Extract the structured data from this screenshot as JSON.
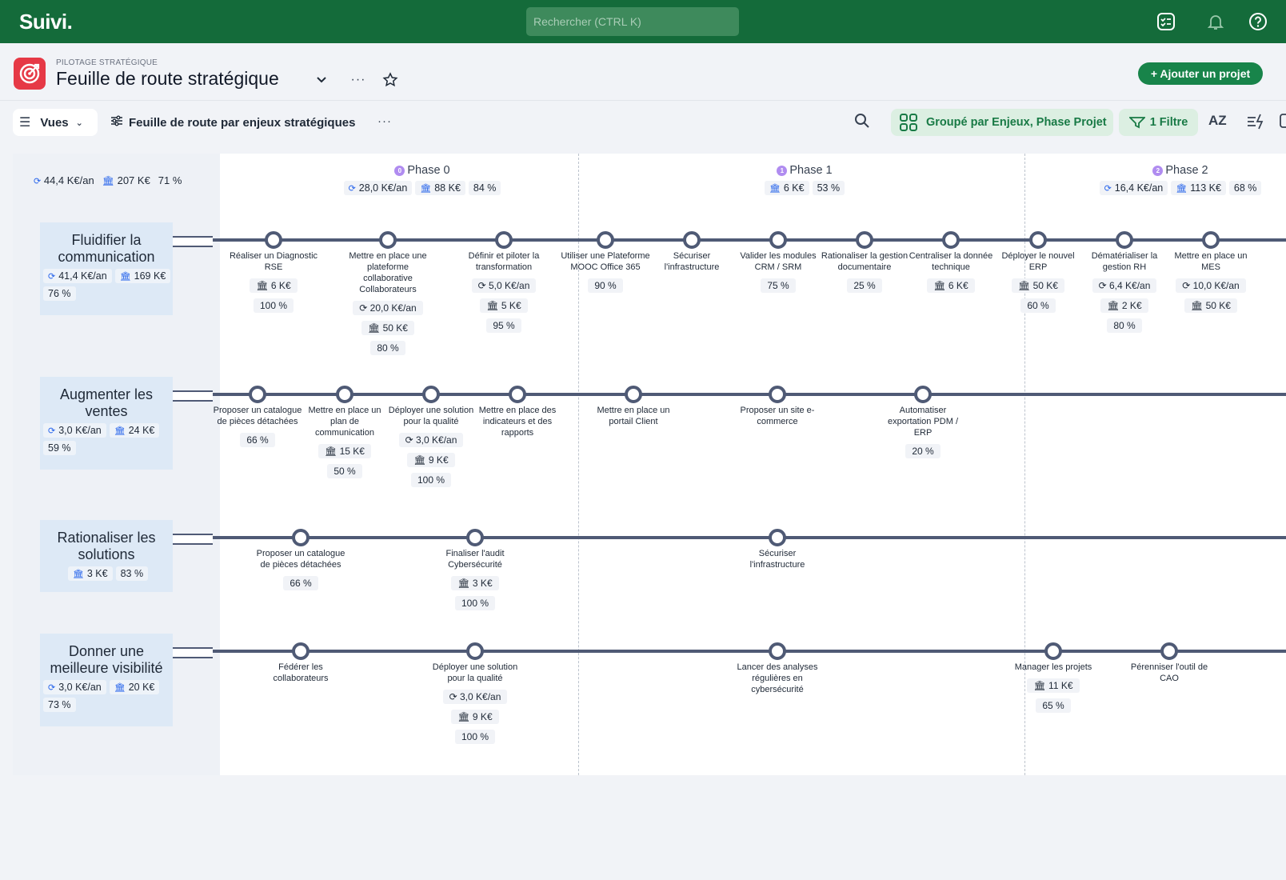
{
  "topbar": {
    "logo": "Suivi.",
    "search_placeholder": "Rechercher (CTRL K)"
  },
  "header": {
    "breadcrumb": "PILOTAGE STRATÉGIQUE",
    "title": "Feuille de route stratégique",
    "more": "···",
    "add_button": "+ Ajouter un projet"
  },
  "toolbar": {
    "views_label": "Vues",
    "view_name": "Feuille de route par enjeux stratégiques",
    "view_more": "···",
    "group_label": "Groupé par Enjeux, Phase Projet",
    "filter_label": "1 Filtre",
    "sort_label": "AZ"
  },
  "totals": {
    "recurrent": "44,4 K€/an",
    "budget": "207 K€",
    "progress": "71 %"
  },
  "phases": [
    {
      "num": "0",
      "title": "Phase 0",
      "recurrent": "28,0 K€/an",
      "budget": "88 K€",
      "progress": "84 %"
    },
    {
      "num": "1",
      "title": "Phase 1",
      "recurrent": "",
      "budget": "6 K€",
      "progress": "53 %"
    },
    {
      "num": "2",
      "title": "Phase 2",
      "recurrent": "16,4 K€/an",
      "budget": "113 K€",
      "progress": "68 %"
    }
  ],
  "rows": [
    {
      "name": "Fluidifier la communication",
      "recurrent": "41,4 K€/an",
      "budget": "169 K€",
      "progress": "76 %",
      "milestones": [
        {
          "label": "Réaliser un Diagnostic RSE",
          "chips": [
            "🏛 6 K€",
            "100 %"
          ]
        },
        {
          "label": "Mettre en place une plateforme collaborative Collaborateurs",
          "chips": [
            "⟳ 20,0 K€/an",
            "🏛 50 K€",
            "80 %"
          ]
        },
        {
          "label": "Définir et piloter la transformation",
          "chips": [
            "⟳ 5,0 K€/an",
            "🏛 5 K€",
            "95 %"
          ]
        },
        {
          "label": "Utiliser une Plateforme MOOC Office 365",
          "chips": [
            "90 %"
          ]
        },
        {
          "label": "Sécuriser l'infrastructure",
          "chips": []
        },
        {
          "label": "Valider les modules CRM / SRM",
          "chips": [
            "75 %"
          ]
        },
        {
          "label": "Rationaliser la gestion documentaire",
          "chips": [
            "25 %"
          ]
        },
        {
          "label": "Centraliser la donnée technique",
          "chips": [
            "🏛 6 K€"
          ]
        },
        {
          "label": "Déployer le nouvel ERP",
          "chips": [
            "🏛 50 K€",
            "60 %"
          ]
        },
        {
          "label": "Dématérialiser la gestion RH",
          "chips": [
            "⟳ 6,4 K€/an",
            "🏛 2 K€",
            "80 %"
          ]
        },
        {
          "label": "Mettre en place un MES",
          "chips": [
            "⟳ 10,0 K€/an",
            "🏛 50 K€"
          ]
        }
      ]
    },
    {
      "name": "Augmenter les ventes",
      "recurrent": "3,0 K€/an",
      "budget": "24 K€",
      "progress": "59 %",
      "milestones": [
        {
          "label": "Proposer un catalogue de pièces détachées",
          "chips": [
            "66 %"
          ]
        },
        {
          "label": "Mettre en place un plan de communication",
          "chips": [
            "🏛 15 K€",
            "50 %"
          ]
        },
        {
          "label": "Déployer une solution pour la qualité",
          "chips": [
            "⟳ 3,0 K€/an",
            "🏛 9 K€",
            "100 %"
          ]
        },
        {
          "label": "Mettre en place des indicateurs et des rapports",
          "chips": []
        },
        {
          "label": "Mettre en place un portail Client",
          "chips": []
        },
        {
          "label": "Proposer un site e-commerce",
          "chips": []
        },
        {
          "label": "Automatiser exportation PDM / ERP",
          "chips": [
            "20 %"
          ]
        }
      ]
    },
    {
      "name": "Rationaliser les solutions",
      "recurrent": "",
      "budget": "3 K€",
      "progress": "83 %",
      "milestones": [
        {
          "label": "Proposer un catalogue de pièces détachées",
          "chips": [
            "66 %"
          ]
        },
        {
          "label": "Finaliser l'audit Cybersécurité",
          "chips": [
            "🏛 3 K€",
            "100 %"
          ]
        },
        {
          "label": "Sécuriser l'infrastructure",
          "chips": []
        }
      ]
    },
    {
      "name": "Donner une meilleure visibilité",
      "recurrent": "3,0 K€/an",
      "budget": "20 K€",
      "progress": "73 %",
      "milestones": [
        {
          "label": "Fédérer les collaborateurs",
          "chips": []
        },
        {
          "label": "Déployer une solution pour la qualité",
          "chips": [
            "⟳ 3,0 K€/an",
            "🏛 9 K€",
            "100 %"
          ]
        },
        {
          "label": "Lancer des analyses régulières en cybersécurité",
          "chips": []
        },
        {
          "label": "Manager les projets",
          "chips": [
            "🏛 11 K€",
            "65 %"
          ]
        },
        {
          "label": "Pérenniser l'outil de CAO",
          "chips": []
        }
      ]
    }
  ]
}
